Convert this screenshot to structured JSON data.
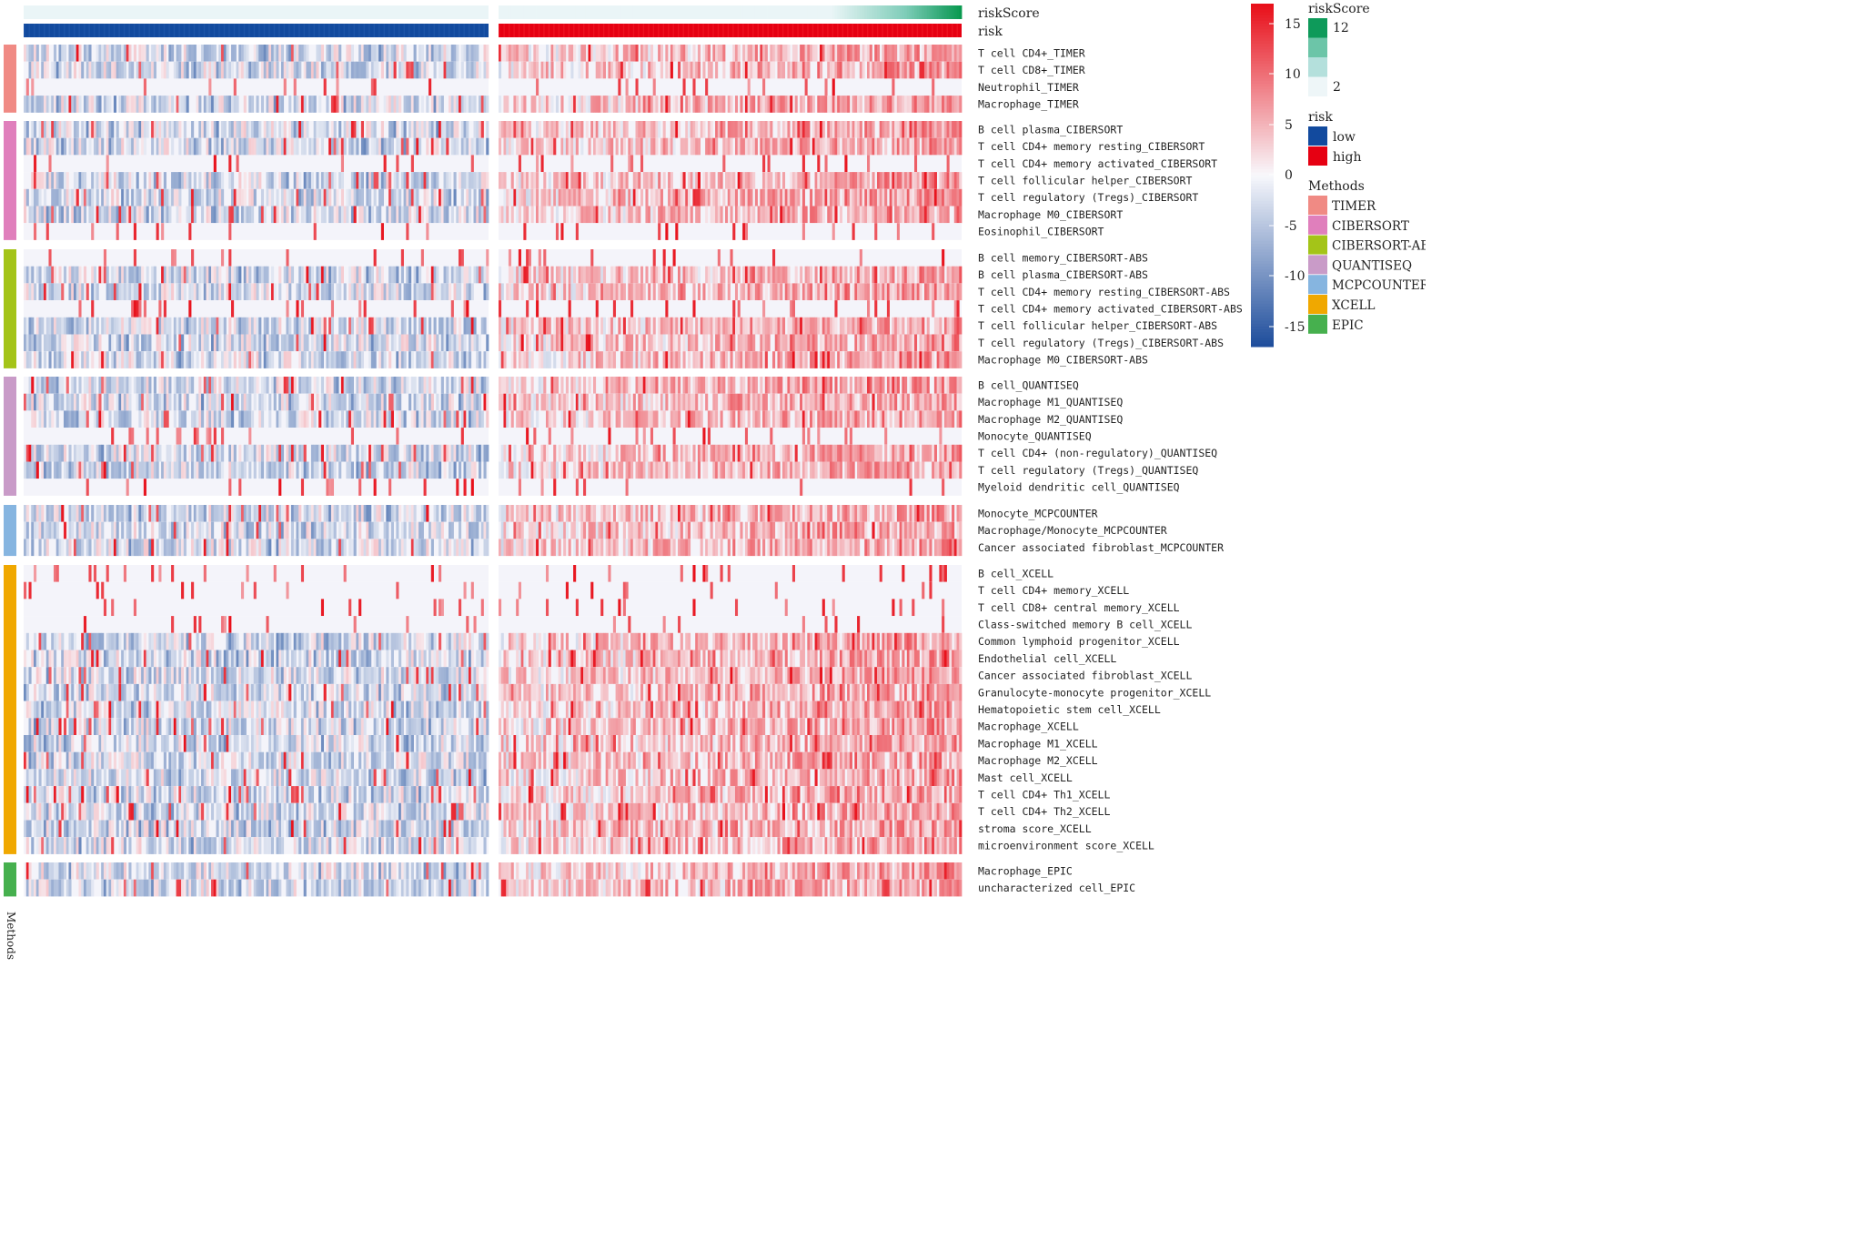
{
  "chart_data": {
    "type": "heatmap",
    "title": "",
    "n_samples_low": 186,
    "n_samples_high": 186,
    "annotations": [
      {
        "name": "riskScore",
        "min": 2,
        "max": 16
      },
      {
        "name": "risk",
        "levels": [
          "low",
          "high"
        ]
      }
    ],
    "row_annotation_label": "Methods",
    "groups": [
      {
        "method": "TIMER",
        "rows": [
          "T cell CD4+_TIMER",
          "T cell CD8+_TIMER",
          "Neutrophil_TIMER",
          "Macrophage_TIMER"
        ]
      },
      {
        "method": "CIBERSORT",
        "rows": [
          "B cell plasma_CIBERSORT",
          "T cell CD4+ memory resting_CIBERSORT",
          "T cell CD4+ memory activated_CIBERSORT",
          "T cell follicular helper_CIBERSORT",
          "T cell regulatory (Tregs)_CIBERSORT",
          "Macrophage M0_CIBERSORT",
          "Eosinophil_CIBERSORT"
        ]
      },
      {
        "method": "CIBERSORT-ABS",
        "rows": [
          "B cell memory_CIBERSORT-ABS",
          "B cell plasma_CIBERSORT-ABS",
          "T cell CD4+ memory resting_CIBERSORT-ABS",
          "T cell CD4+ memory activated_CIBERSORT-ABS",
          "T cell follicular helper_CIBERSORT-ABS",
          "T cell regulatory (Tregs)_CIBERSORT-ABS",
          "Macrophage M0_CIBERSORT-ABS"
        ]
      },
      {
        "method": "QUANTISEQ",
        "rows": [
          "B cell_QUANTISEQ",
          "Macrophage M1_QUANTISEQ",
          "Macrophage M2_QUANTISEQ",
          "Monocyte_QUANTISEQ",
          "T cell CD4+ (non-regulatory)_QUANTISEQ",
          "T cell regulatory (Tregs)_QUANTISEQ",
          "Myeloid dendritic cell_QUANTISEQ"
        ]
      },
      {
        "method": "MCPCOUNTER",
        "rows": [
          "Monocyte_MCPCOUNTER",
          "Macrophage/Monocyte_MCPCOUNTER",
          "Cancer associated fibroblast_MCPCOUNTER"
        ]
      },
      {
        "method": "XCELL",
        "rows": [
          "B cell_XCELL",
          "T cell CD4+ memory_XCELL",
          "T cell CD8+ central memory_XCELL",
          "Class-switched memory B cell_XCELL",
          "Common lymphoid progenitor_XCELL",
          "Endothelial cell_XCELL",
          "Cancer associated fibroblast_XCELL",
          "Granulocyte-monocyte progenitor_XCELL",
          "Hematopoietic stem cell_XCELL",
          "Macrophage_XCELL",
          "Macrophage M1_XCELL",
          "Macrophage M2_XCELL",
          "Mast cell_XCELL",
          "T cell CD4+ Th1_XCELL",
          "T cell CD4+ Th2_XCELL",
          "stroma score_XCELL",
          "microenvironment score_XCELL"
        ]
      },
      {
        "method": "EPIC",
        "rows": [
          "Macrophage_EPIC",
          "uncharacterized cell_EPIC"
        ]
      }
    ],
    "color_scale": {
      "min": -15,
      "max": 15,
      "ticks": [
        15,
        10,
        5,
        0,
        -5,
        -10,
        -15
      ],
      "low_color": "#1f4e9c",
      "mid_color": "#f8f8fc",
      "high_color": "#e8101a"
    },
    "riskScore_legend": {
      "title": "riskScore",
      "ticks": [
        12,
        2
      ],
      "colors": [
        "#0e9a5a",
        "#6cc5a8",
        "#b4e0dc",
        "#eef6f8"
      ]
    },
    "risk_legend": {
      "title": "risk",
      "levels": [
        {
          "label": "low",
          "color": "#124a9e"
        },
        {
          "label": "high",
          "color": "#e60012"
        }
      ]
    },
    "methods_legend": {
      "title": "Methods",
      "levels": [
        {
          "label": "TIMER",
          "color": "#f08a84"
        },
        {
          "label": "CIBERSORT",
          "color": "#e07fbc"
        },
        {
          "label": "CIBERSORT-ABS",
          "color": "#a4c418"
        },
        {
          "label": "QUANTISEQ",
          "color": "#c99bc8"
        },
        {
          "label": "MCPCOUNTER",
          "color": "#86b5e0"
        },
        {
          "label": "XCELL",
          "color": "#f0a800"
        },
        {
          "label": "EPIC",
          "color": "#46b04e"
        }
      ]
    }
  }
}
